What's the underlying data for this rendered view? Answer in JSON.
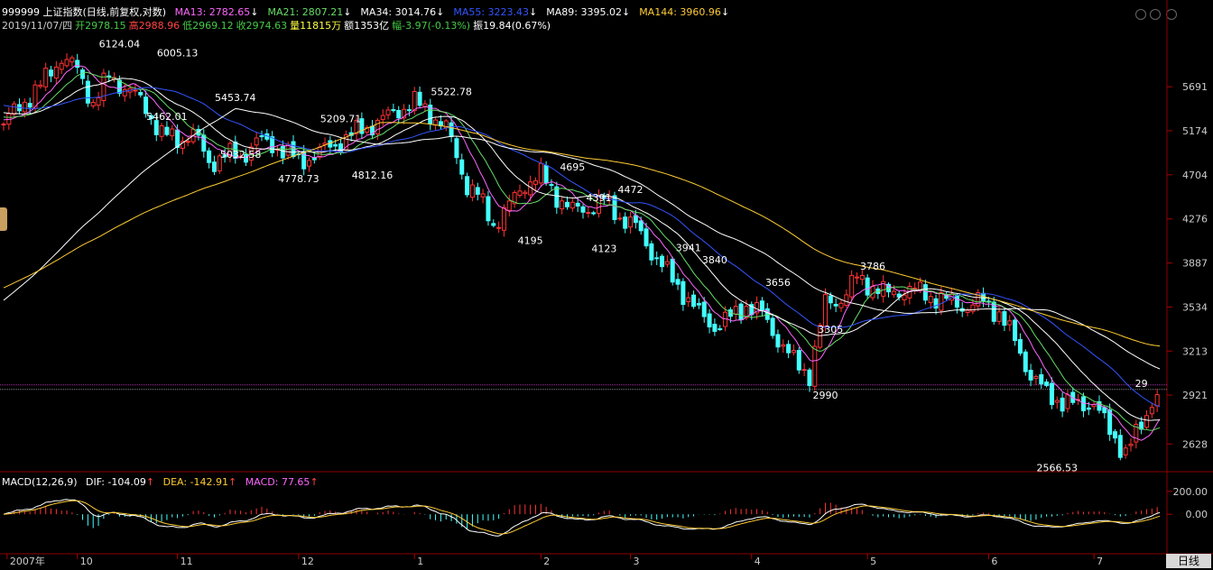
{
  "header": {
    "symbol": "999999 上证指数(日线,前复权,对数)",
    "ma": [
      {
        "label": "MA13: 2782.65",
        "arrow": "↓",
        "color": "#ff66ff"
      },
      {
        "label": "MA21: 2807.21",
        "arrow": "↓",
        "color": "#66dd66"
      },
      {
        "label": "MA34: 3014.76",
        "arrow": "↓",
        "color": "#ffffff"
      },
      {
        "label": "MA55: 3223.43",
        "arrow": "↓",
        "color": "#3355ff"
      },
      {
        "label": "MA89: 3395.02",
        "arrow": "↓",
        "color": "#ffffff"
      },
      {
        "label": "MA144: 3960.96",
        "arrow": "↓",
        "color": "#ffcc33"
      }
    ],
    "line2": [
      {
        "text": "2019/11/07/四",
        "color": "#cccccc"
      },
      {
        "text": "开2978.15",
        "color": "#44cc44"
      },
      {
        "text": "高2988.96",
        "color": "#ff4444"
      },
      {
        "text": "低2969.12",
        "color": "#44cc44"
      },
      {
        "text": "收2974.63",
        "color": "#44cc44"
      },
      {
        "text": "量11815万",
        "color": "#ffff44"
      },
      {
        "text": "额1353亿",
        "color": "#ffffff"
      },
      {
        "text": "幅-3.97(-0.13%)",
        "color": "#44cc44"
      },
      {
        "text": "振19.84(0.67%)",
        "color": "#ffffff"
      }
    ]
  },
  "macd_header": {
    "title": "MACD(12,26,9)",
    "dif": "DIF: -104.09",
    "dea": "DEA: -142.91",
    "macd": "MACD: 77.65",
    "arrow": "↑"
  },
  "tab_label": "日线",
  "colors": {
    "up": "#ff3333",
    "down": "#44ffff",
    "grid": "#7a0000",
    "bg": "#000000"
  },
  "chart_data": {
    "type": "candlestick",
    "y_scale": "log",
    "ylim": [
      2480,
      6400
    ],
    "y_ticks": [
      "5691",
      "5174",
      "4704",
      "4276",
      "3887",
      "3534",
      "3213",
      "2921",
      "2628"
    ],
    "x_labels": [
      "2007年",
      "10",
      "11",
      "12",
      "1",
      "2",
      "3",
      "4",
      "5",
      "6",
      "7"
    ],
    "price_labels": [
      "6124.04",
      "6005.13",
      "5462.01",
      "5453.74",
      "5032.58",
      "5209.71",
      "4778.73",
      "4812.16",
      "5522.78",
      "4695",
      "4391",
      "4472",
      "4195",
      "4123",
      "3941",
      "3840",
      "3656",
      "3305",
      "2990",
      "3786",
      "2566.53",
      "29"
    ],
    "anchors": [
      [
        0,
        5250
      ],
      [
        8,
        5520
      ],
      [
        14,
        5700
      ],
      [
        22,
        6080
      ],
      [
        28,
        5900
      ],
      [
        34,
        5500
      ],
      [
        40,
        5820
      ],
      [
        48,
        5650
      ],
      [
        54,
        5440
      ],
      [
        60,
        5140
      ],
      [
        66,
        5070
      ],
      [
        72,
        5150
      ],
      [
        78,
        4830
      ],
      [
        84,
        4910
      ],
      [
        90,
        4890
      ],
      [
        96,
        5060
      ],
      [
        104,
        5000
      ],
      [
        112,
        4840
      ],
      [
        120,
        4930
      ],
      [
        128,
        5060
      ],
      [
        136,
        5190
      ],
      [
        144,
        5300
      ],
      [
        150,
        5420
      ],
      [
        156,
        5500
      ],
      [
        162,
        5380
      ],
      [
        168,
        5200
      ],
      [
        172,
        4900
      ],
      [
        176,
        4600
      ],
      [
        180,
        4500
      ],
      [
        186,
        4230
      ],
      [
        192,
        4400
      ],
      [
        198,
        4620
      ],
      [
        204,
        4700
      ],
      [
        210,
        4500
      ],
      [
        216,
        4350
      ],
      [
        222,
        4380
      ],
      [
        228,
        4450
      ],
      [
        234,
        4300
      ],
      [
        240,
        4200
      ],
      [
        246,
        3990
      ],
      [
        252,
        3800
      ],
      [
        258,
        3650
      ],
      [
        264,
        3480
      ],
      [
        270,
        3390
      ],
      [
        276,
        3450
      ],
      [
        282,
        3550
      ],
      [
        288,
        3480
      ],
      [
        294,
        3300
      ],
      [
        300,
        3140
      ],
      [
        306,
        3060
      ],
      [
        312,
        3560
      ],
      [
        318,
        3600
      ],
      [
        324,
        3760
      ],
      [
        330,
        3700
      ],
      [
        336,
        3630
      ],
      [
        342,
        3680
      ],
      [
        348,
        3650
      ],
      [
        354,
        3610
      ],
      [
        360,
        3570
      ],
      [
        366,
        3540
      ],
      [
        372,
        3580
      ],
      [
        378,
        3490
      ],
      [
        384,
        3280
      ],
      [
        390,
        3050
      ],
      [
        396,
        2930
      ],
      [
        402,
        2880
      ],
      [
        408,
        2850
      ],
      [
        414,
        2880
      ],
      [
        420,
        2690
      ],
      [
        426,
        2590
      ],
      [
        432,
        2720
      ],
      [
        437,
        2940
      ]
    ],
    "series": [
      {
        "name": "MA13",
        "color": "#ff66ff"
      },
      {
        "name": "MA21",
        "color": "#66dd66"
      },
      {
        "name": "MA34",
        "color": "#ffffff"
      },
      {
        "name": "MA55",
        "color": "#3355ff"
      },
      {
        "name": "MA89",
        "color": "#ffffff"
      },
      {
        "name": "MA144",
        "color": "#ffcc33"
      }
    ],
    "macd": {
      "ticks": [
        "200.00",
        "0.00"
      ],
      "ylim": [
        -330,
        270
      ]
    }
  }
}
